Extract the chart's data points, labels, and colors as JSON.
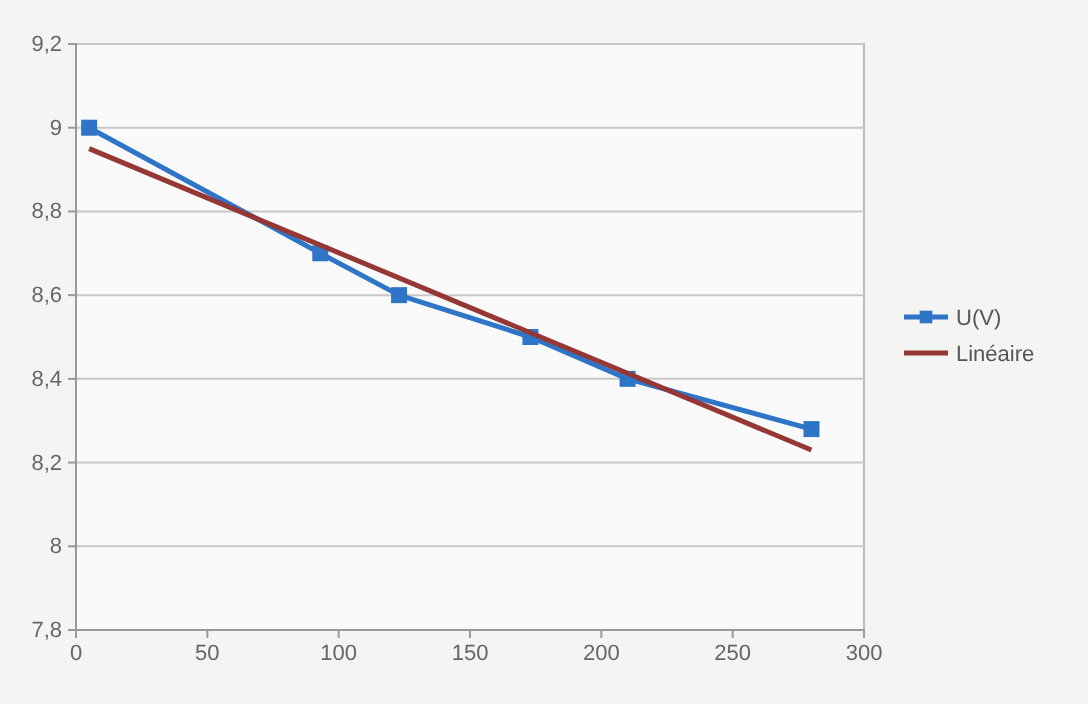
{
  "chart_data": {
    "type": "line",
    "marker": "square",
    "grid": "y",
    "legend": "right",
    "xlim": [
      0,
      300
    ],
    "xticks": [
      0,
      50,
      100,
      150,
      200,
      250,
      300
    ],
    "ylim": [
      7.8,
      9.2
    ],
    "yticks": [
      {
        "value": 7.8,
        "label": "7,8"
      },
      {
        "value": 8,
        "label": "8"
      },
      {
        "value": 8.2,
        "label": "8,2"
      },
      {
        "value": 8.4,
        "label": "8,4"
      },
      {
        "value": 8.6,
        "label": "8,6"
      },
      {
        "value": 8.8,
        "label": "8,8"
      },
      {
        "value": 9,
        "label": "9"
      },
      {
        "value": 9.2,
        "label": "9,2"
      }
    ],
    "series": [
      {
        "name": "U(V)",
        "color": "#2e75c8",
        "x": [
          5,
          93,
          123,
          173,
          210,
          280
        ],
        "values": [
          9.0,
          8.7,
          8.6,
          8.5,
          8.4,
          8.28
        ]
      },
      {
        "name": "Linéaire",
        "color": "#953735",
        "type": "line",
        "marker": "none",
        "x": [
          5,
          280
        ],
        "values": [
          8.95,
          8.23
        ]
      }
    ]
  }
}
